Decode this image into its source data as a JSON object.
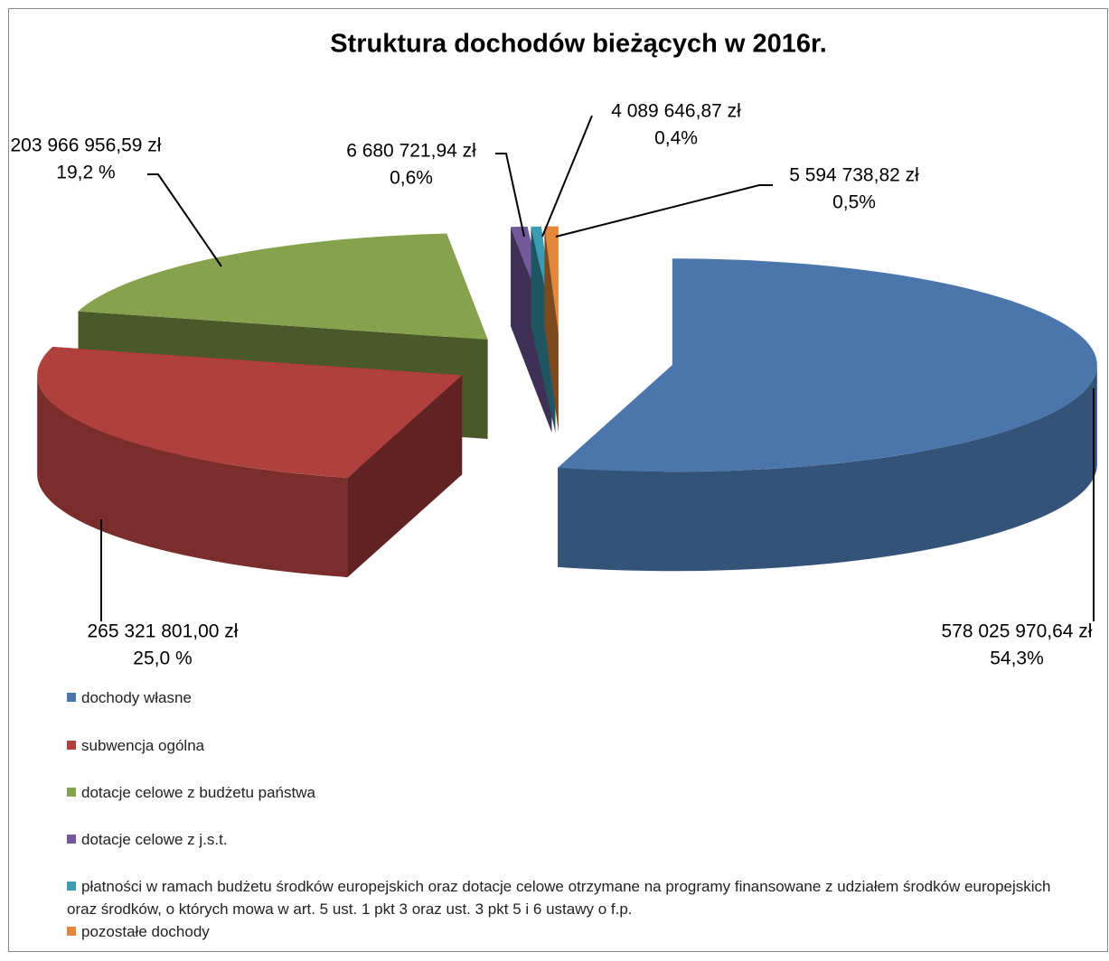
{
  "chart_data": {
    "type": "pie3d",
    "title": "Struktura dochodów bieżących w  2016r.",
    "categories": [
      "dochody własne",
      "subwencja ogólna",
      "dotacje celowe z budżetu państwa",
      "dotacje celowe z j.s.t.",
      "płatności w ramach budżetu środków europejskich oraz dotacje celowe otrzymane na programy finansowane z udziałem środków europejskich oraz środków, o których mowa w art. 5 ust. 1 pkt 3 oraz ust. 3 pkt 5 i 6 ustawy o f.p.",
      "pozostałe dochody"
    ],
    "values": [
      578025970.64,
      265321801.0,
      203966956.59,
      6680721.94,
      4089646.87,
      5594738.82
    ],
    "value_labels": [
      "578 025 970,64 zł",
      "265 321 801,00 zł",
      "203 966 956,59 zł",
      "6 680 721,94 zł",
      "4 089 646,87 zł",
      "5 594 738,82 zł"
    ],
    "percents": [
      54.3,
      25.0,
      19.2,
      0.6,
      0.4,
      0.5
    ],
    "percent_labels": [
      "54,3%",
      "25,0 %",
      "19,2 %",
      "0,6%",
      "0,4%",
      "0,5%"
    ],
    "colors": [
      "#4a76ab",
      "#b0403d",
      "#86a24c",
      "#73599a",
      "#3b9bb3",
      "#e4873a"
    ]
  }
}
